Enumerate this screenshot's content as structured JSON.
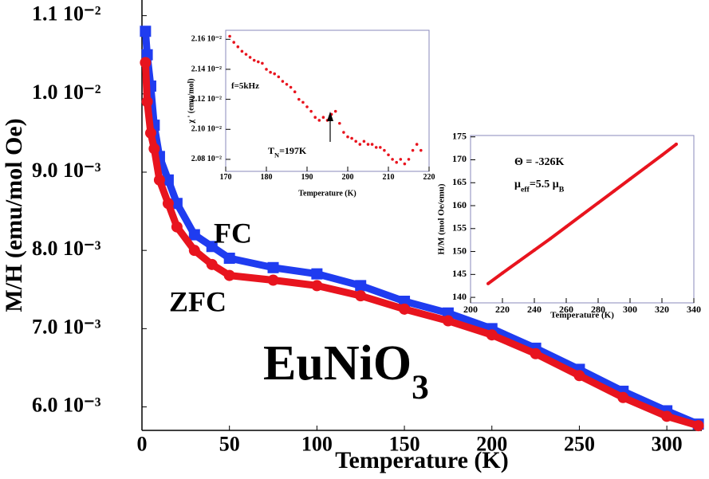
{
  "chart_data": [
    {
      "type": "line",
      "x_label": "Temperature (K)",
      "y_label": "M/H (emu/mol Oe)",
      "xlim": [
        0,
        320
      ],
      "ylim": [
        0.0057,
        0.0112
      ],
      "xticks": [
        0,
        50,
        100,
        150,
        200,
        250,
        300
      ],
      "yticks": [
        {
          "value": 0.006,
          "label": "6.0 10⁻³"
        },
        {
          "value": 0.007,
          "label": "7.0 10⁻³"
        },
        {
          "value": 0.008,
          "label": "8.0 10⁻³"
        },
        {
          "value": 0.009,
          "label": "9.0 10⁻³"
        },
        {
          "value": 0.01,
          "label": "1.0 10⁻²"
        },
        {
          "value": 0.011,
          "label": "1.1 10⁻²"
        }
      ],
      "series": [
        {
          "name": "FC",
          "color": "#1f3cf0",
          "marker": "square",
          "x": [
            2,
            3,
            5,
            7,
            10,
            15,
            20,
            30,
            40,
            50,
            75,
            100,
            125,
            150,
            175,
            200,
            225,
            250,
            275,
            300,
            318
          ],
          "values": [
            0.0108,
            0.0105,
            0.0101,
            0.0096,
            0.0092,
            0.0089,
            0.0086,
            0.0082,
            0.00805,
            0.0079,
            0.00778,
            0.0077,
            0.00755,
            0.00735,
            0.0072,
            0.007,
            0.00675,
            0.00648,
            0.0062,
            0.00595,
            0.00578
          ]
        },
        {
          "name": "ZFC",
          "color": "#e8141e",
          "marker": "circle",
          "x": [
            2,
            3,
            5,
            7,
            10,
            15,
            20,
            30,
            40,
            50,
            75,
            100,
            125,
            150,
            175,
            200,
            225,
            250,
            275,
            300,
            318
          ],
          "values": [
            0.0104,
            0.0099,
            0.0095,
            0.0093,
            0.0089,
            0.0086,
            0.0083,
            0.008,
            0.00782,
            0.00768,
            0.00762,
            0.00755,
            0.00742,
            0.00725,
            0.0071,
            0.00692,
            0.00668,
            0.0064,
            0.00612,
            0.00588,
            0.00576
          ]
        }
      ],
      "annotations": [
        {
          "segments": [
            {
              "text": "EuNiO"
            },
            {
              "text": "3",
              "shift": "sub"
            }
          ]
        }
      ]
    },
    {
      "type": "scatter",
      "x_label": "Temperature (K)",
      "y_label": "χ ' (emu/mol)",
      "xlim": [
        170,
        220
      ],
      "ylim": [
        0.02072,
        0.02166
      ],
      "xticks": [
        170,
        180,
        190,
        200,
        210,
        220
      ],
      "yticks": [
        {
          "value": 0.0208,
          "label": "2.08 10⁻²"
        },
        {
          "value": 0.021,
          "label": "2.10 10⁻²"
        },
        {
          "value": 0.0212,
          "label": "2.12 10⁻²"
        },
        {
          "value": 0.0214,
          "label": "2.14 10⁻²"
        },
        {
          "value": 0.0216,
          "label": "2.16 10⁻²"
        }
      ],
      "series": [
        {
          "color": "#e8141e",
          "marker": "circle",
          "x": [
            171,
            172,
            173,
            174,
            175,
            176,
            177,
            178,
            179,
            180,
            181,
            182,
            183,
            184,
            185,
            186,
            187,
            188,
            189,
            190,
            191,
            192,
            193,
            194,
            195,
            196,
            197,
            198,
            199,
            200,
            201,
            202,
            203,
            204,
            205,
            206,
            207,
            208,
            209,
            210,
            211,
            212,
            213,
            214,
            215,
            216,
            217,
            218
          ],
          "values": [
            0.02162,
            0.02158,
            0.02155,
            0.02152,
            0.0215,
            0.02148,
            0.02146,
            0.02145,
            0.02144,
            0.0214,
            0.02138,
            0.02137,
            0.02135,
            0.02132,
            0.0213,
            0.02128,
            0.02125,
            0.0212,
            0.02118,
            0.02115,
            0.02112,
            0.02108,
            0.02106,
            0.02108,
            0.02106,
            0.0211,
            0.02112,
            0.02104,
            0.02098,
            0.02095,
            0.02094,
            0.02092,
            0.0209,
            0.02092,
            0.0209,
            0.0209,
            0.02088,
            0.02088,
            0.02086,
            0.02083,
            0.0208,
            0.02078,
            0.0208,
            0.02077,
            0.0208,
            0.02086,
            0.0209,
            0.02086
          ]
        }
      ],
      "annotations": [
        {
          "segments": [
            {
              "text": "f=5kHz"
            }
          ]
        },
        {
          "segments": [
            {
              "text": "T"
            },
            {
              "text": "N",
              "shift": "sub"
            },
            {
              "text": "=197K"
            }
          ]
        }
      ]
    },
    {
      "type": "line",
      "x_label": "Temperature (K)",
      "y_label": "H/M (mol Oe/emu)",
      "xlim": [
        200,
        340
      ],
      "ylim": [
        138.8,
        175.3
      ],
      "xticks": [
        200,
        220,
        240,
        260,
        280,
        300,
        320,
        340
      ],
      "yticks": [
        140,
        145,
        150,
        155,
        160,
        165,
        170,
        175
      ],
      "series": [
        {
          "color": "#e8141e",
          "marker": "circle",
          "x": [
            211,
            220,
            230,
            240,
            250,
            260,
            270,
            280,
            290,
            300,
            310,
            320,
            329
          ],
          "values": [
            143.0,
            145.3,
            147.8,
            150.3,
            152.8,
            155.4,
            158.0,
            160.6,
            163.2,
            165.8,
            168.4,
            171.0,
            173.4
          ]
        }
      ],
      "annotations": [
        {
          "segments": [
            {
              "text": "Θ = -326K"
            }
          ]
        },
        {
          "segments": [
            {
              "text": "μ"
            },
            {
              "text": "eff",
              "shift": "sub"
            },
            {
              "text": "=5.5 μ"
            },
            {
              "text": "B",
              "shift": "sub"
            }
          ]
        }
      ]
    }
  ]
}
